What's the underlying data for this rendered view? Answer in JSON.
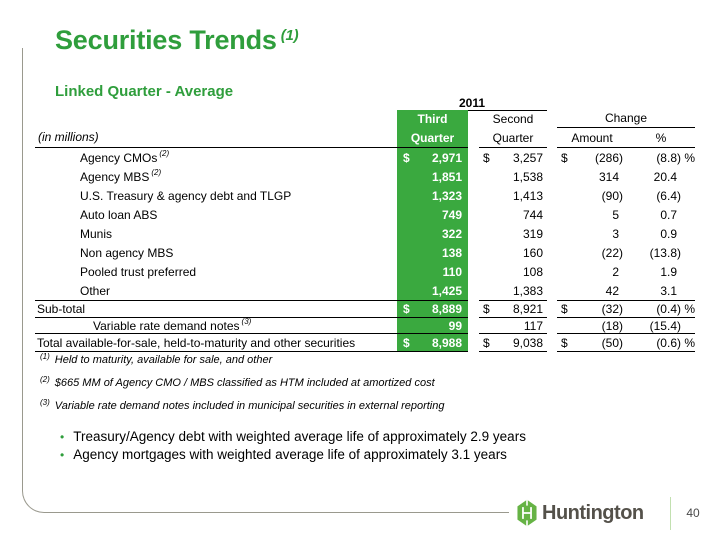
{
  "colors": {
    "accent_green": "#2f9e3c",
    "table_green": "#3aa93f",
    "logo_green": "#66b345",
    "divider_green": "#c2e0b0",
    "frame_gray": "#9a998e",
    "footer_text": "#54514a",
    "page_number": "#4a4a4a"
  },
  "slide": {
    "title": "Securities Trends",
    "title_sup": "(1)",
    "subtitle": "Linked Quarter - Average"
  },
  "table": {
    "year": "2011",
    "headers": {
      "third_l1": "Third",
      "third_l2": "Quarter",
      "second_l1": "Second",
      "second_l2": "Quarter",
      "change": "Change",
      "amount": "Amount",
      "pct": "%",
      "units": "(in millions)"
    },
    "rows": [
      {
        "type": "detail",
        "label": "Agency CMOs",
        "sup": "(2)",
        "d3": "$",
        "third": "2,971",
        "d2": "$",
        "second": "3,257",
        "da": "$",
        "amount": "(286)",
        "pct": "(8.8)",
        "psign": "%"
      },
      {
        "type": "detail",
        "label": "Agency MBS",
        "sup": "(2)",
        "d3": "",
        "third": "1,851",
        "d2": "",
        "second": "1,538",
        "da": "",
        "amount": "314",
        "pct": "20.4",
        "psign": ""
      },
      {
        "type": "detail",
        "label": "U.S. Treasury & agency debt and TLGP",
        "sup": "",
        "d3": "",
        "third": "1,323",
        "d2": "",
        "second": "1,413",
        "da": "",
        "amount": "(90)",
        "pct": "(6.4)",
        "psign": ""
      },
      {
        "type": "detail",
        "label": "Auto loan ABS",
        "sup": "",
        "d3": "",
        "third": "749",
        "d2": "",
        "second": "744",
        "da": "",
        "amount": "5",
        "pct": "0.7",
        "psign": ""
      },
      {
        "type": "detail",
        "label": "Munis",
        "sup": "",
        "d3": "",
        "third": "322",
        "d2": "",
        "second": "319",
        "da": "",
        "amount": "3",
        "pct": "0.9",
        "psign": ""
      },
      {
        "type": "detail",
        "label": "Non agency MBS",
        "sup": "",
        "d3": "",
        "third": "138",
        "d2": "",
        "second": "160",
        "da": "",
        "amount": "(22)",
        "pct": "(13.8)",
        "psign": ""
      },
      {
        "type": "detail",
        "label": "Pooled trust preferred",
        "sup": "",
        "d3": "",
        "third": "110",
        "d2": "",
        "second": "108",
        "da": "",
        "amount": "2",
        "pct": "1.9",
        "psign": ""
      },
      {
        "type": "detail",
        "label": "Other",
        "sup": "",
        "d3": "",
        "third": "1,425",
        "d2": "",
        "second": "1,383",
        "da": "",
        "amount": "42",
        "pct": "3.1",
        "psign": ""
      },
      {
        "type": "subtotal",
        "label": "Sub-total",
        "sup": "",
        "d3": "$",
        "third": "8,889",
        "d2": "$",
        "second": "8,921",
        "da": "$",
        "amount": "(32)",
        "pct": "(0.4)",
        "psign": "%"
      },
      {
        "type": "vrdn",
        "label": "Variable rate demand notes",
        "sup": "(3)",
        "d3": "",
        "third": "99",
        "d2": "",
        "second": "117",
        "da": "",
        "amount": "(18)",
        "pct": "(15.4)",
        "psign": ""
      },
      {
        "type": "total",
        "label": "Total available-for-sale, held-to-maturity and other securities",
        "sup": "",
        "d3": "$",
        "third": "8,988",
        "d2": "$",
        "second": "9,038",
        "da": "$",
        "amount": "(50)",
        "pct": "(0.6)",
        "psign": "%"
      }
    ]
  },
  "footnotes": [
    {
      "sup": "(1)",
      "text": "Held to maturity, available for sale, and other"
    },
    {
      "sup": "(2)",
      "text": "$665 MM of Agency CMO / MBS classified as HTM included at amortized cost"
    },
    {
      "sup": "(3)",
      "text": "Variable rate demand notes included in municipal securities in external reporting"
    }
  ],
  "bullets": [
    "Treasury/Agency debt with weighted average life of approximately 2.9 years",
    "Agency mortgages with weighted average life of approximately 3.1 years"
  ],
  "footer": {
    "brand": "Huntington",
    "page": "40"
  }
}
